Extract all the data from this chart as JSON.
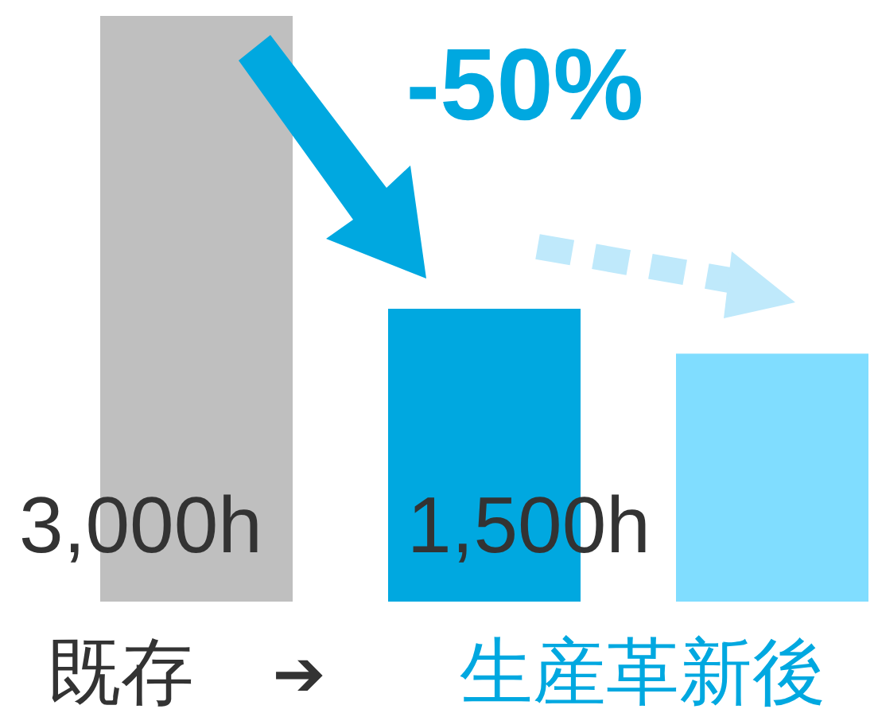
{
  "chart_data": {
    "type": "bar",
    "categories": [
      null,
      null,
      null
    ],
    "values": [
      3000,
      1500,
      1270
    ],
    "colors": [
      "#bfbfbf",
      "#00a8e0",
      "#80ddff"
    ],
    "value_labels": [
      "3,000h",
      "1,500h",
      null
    ],
    "annotations": [
      "-50%",
      "既存",
      "➔",
      "生産革新後"
    ]
  }
}
